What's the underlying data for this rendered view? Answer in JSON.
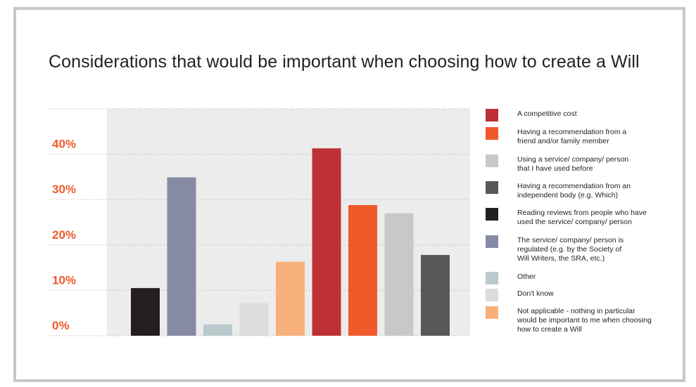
{
  "chart_data": {
    "type": "bar",
    "title": "Considerations that would be important when choosing how to create a Will",
    "y_tick_labels": [
      "0%",
      "10%",
      "20%",
      "30%",
      "40%"
    ],
    "ylim": [
      0,
      50
    ],
    "grid": true,
    "legend_position": "right",
    "series": [
      {
        "name": "Reading reviews from people who have\nused the service/ company/ person",
        "value": 10.5,
        "color": "#231f20"
      },
      {
        "name": "The service/ company/ person is\nregulated (e.g. by the Society of\nWill Writers, the SRA, etc.)",
        "value": 34.9,
        "color": "#878aa5"
      },
      {
        "name": "Other",
        "value": 2.5,
        "color": "#b9c9cc"
      },
      {
        "name": "Don't know",
        "value": 7.2,
        "color": "#dcdcdc"
      },
      {
        "name": "Not applicable - nothing in particular\nwould be important to me when choosing\nhow to create a Will",
        "value": 16.3,
        "color": "#f7b07a"
      },
      {
        "name": "A competitive cost",
        "value": 41.3,
        "color": "#bd3035"
      },
      {
        "name": "Having a recommendation from a\nfriend and/or family member",
        "value": 28.8,
        "color": "#f05a2b"
      },
      {
        "name": "Using a service/ company/ person\nthat I have used before",
        "value": 27.0,
        "color": "#c8c8ca"
      },
      {
        "name": "Having a recommendation from an\nindependent body (e.g. Which)",
        "value": 17.8,
        "color": "#58585a"
      }
    ]
  },
  "legend_order": [
    5,
    6,
    7,
    8,
    0,
    1,
    2,
    3,
    4
  ],
  "colors": {
    "plot_background": "#ececec",
    "frame_border": "#c8c8c8",
    "tick_label": "#f05a2b",
    "grid": "#c8c8c8"
  }
}
